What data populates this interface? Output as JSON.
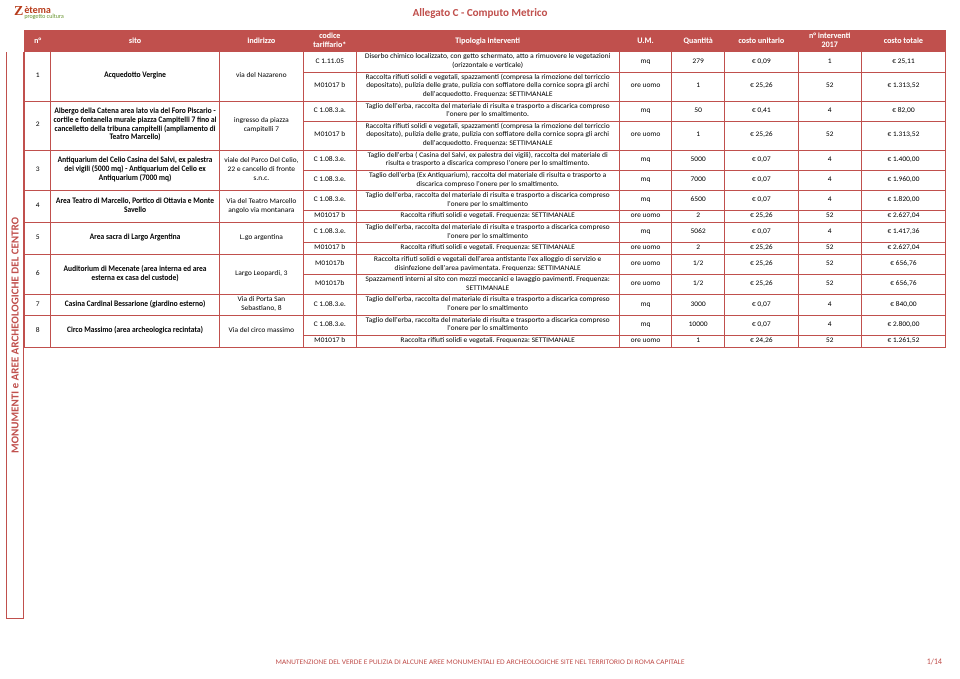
{
  "docTitle": "Allegato C - Computo Metrico",
  "logo": {
    "letter": "Z",
    "name": "ètema",
    "tagline": "progetto cultura"
  },
  "sideLabel": "MONUMENTI e AREE ARCHEOLOGICHE DEL CENTRO",
  "footer": "MANUTENZIONE DEL VERDE E PULIZIA DI ALCUNE AREE MONUMENTALI ED ARCHEOLOGICHE SITE NEL TERRITORIO DI ROMA CAPITALE",
  "pageNo": "1/14",
  "headers": {
    "n": "n°",
    "sito": "sito",
    "indirizzo": "indirizzo",
    "codice": "codice tariffario*",
    "tipologia": "Tipologia interventi",
    "um": "U.M.",
    "quantita": "Quantità",
    "costoUnit": "costo unitario",
    "nInt": "n° interventi 2017",
    "costoTot": "costo totale"
  },
  "groups": [
    {
      "n": "1",
      "sito": "Acquedotto Vergine",
      "indirizzo": "via del Nazareno",
      "rows": [
        {
          "cod": "C 1.11.05",
          "tip": "Diserbo chimico localizzato, con getto schermato, atto a rimuovere le vegetazioni (orizzontale e verticale)",
          "um": "mq",
          "qt": "279",
          "cu": "€         0,09",
          "ni": "1",
          "ct": "€         25,11"
        },
        {
          "cod": "M01017 b",
          "tip": "Raccolta rifiuti solidi e vegetali, spazzamenti (compresa la rimozione del terriccio depositato), pulizia delle grate, pulizia con soffiatore della cornice sopra gli archi dell'acquedotto. Frequenza: SETTIMANALE",
          "um": "ore uomo",
          "qt": "1",
          "cu": "€       25,26",
          "ni": "52",
          "ct": "€   1.313,52"
        }
      ]
    },
    {
      "n": "2",
      "sito": "Albergo della Catena  area  lato via del Foro Piscario - cortile e fontanella murale piazza Campitelli 7 fino al cancelletto della tribuna campitelli (ampliamento di Teatro Marcello)",
      "indirizzo": "ingresso da piazza campitelli 7",
      "rows": [
        {
          "cod": "C 1.08.3.a.",
          "tip": "Taglio dell'erba, raccolta del materiale di risulta e trasporto a discarica compreso l'onere per lo smaltimento.",
          "um": "mq",
          "qt": "50",
          "cu": "€         0,41",
          "ni": "4",
          "ct": "€         82,00"
        },
        {
          "cod": "M01017 b",
          "tip": "Raccolta rifiuti solidi e vegetali, spazzamenti (compresa la rimozione del terriccio depositato), pulizia delle grate, pulizia con soffiatore della cornice sopra gli archi dell'acquedotto. Frequenza: SETTIMANALE",
          "um": "ore uomo",
          "qt": "1",
          "cu": "€       25,26",
          "ni": "52",
          "ct": "€   1.313,52"
        }
      ]
    },
    {
      "n": "3",
      "sito": "Antiquarium del Celio Casina del Salvi, ex palestra dei vigili (5000 mq) - Antiquarium del Celio ex Antiquarium (7000 mq)",
      "indirizzo": "viale del Parco Del Celio, 22 e cancello di fronte s.n.c.",
      "rows": [
        {
          "cod": "C 1.08.3.e.",
          "tip": "Taglio dell'erba ( Casina del Salvi, ex palestra dei vigili), raccolta del materiale di risulta e trasporto a discarica compreso l'onere per lo smaltimento.",
          "um": "mq",
          "qt": "5000",
          "cu": "€         0,07",
          "ni": "4",
          "ct": "€   1.400,00"
        },
        {
          "cod": "C 1.08.3.e.",
          "tip": "Taglio dell'erba (Ex Antiquarium), raccolta del materiale di risulta e trasporto a discarica compreso l'onere per lo smaltimento.",
          "um": "mq",
          "qt": "7000",
          "cu": "€         0,07",
          "ni": "4",
          "ct": "€   1.960,00"
        }
      ]
    },
    {
      "n": "4",
      "sito": "Area Teatro di Marcello, Portico di Ottavia e Monte Savello",
      "indirizzo": "Via del Teatro Marcello angolo via montanara",
      "rows": [
        {
          "cod": "C 1.08.3.e.",
          "tip": "Taglio dell'erba, raccolta del materiale di risulta e trasporto a discarica compreso l'onere per lo smaltimento",
          "um": "mq",
          "qt": "6500",
          "cu": "€         0,07",
          "ni": "4",
          "ct": "€   1.820,00"
        },
        {
          "cod": "M01017 b",
          "tip": "Raccolta rifiuti solidi e vegetali. Frequenza: SETTIMANALE",
          "um": "ore uomo",
          "qt": "2",
          "cu": "€       25,26",
          "ni": "52",
          "ct": "€   2.627,04"
        }
      ]
    },
    {
      "n": "5",
      "sito": "Area sacra di Largo Argentina",
      "indirizzo": "L.go argentina",
      "rows": [
        {
          "cod": "C 1.08.3.e.",
          "tip": "Taglio dell'erba, raccolta del materiale di risulta e trasporto a discarica compreso l'onere per lo smaltimento",
          "um": "mq",
          "qt": "5062",
          "cu": "€         0,07",
          "ni": "4",
          "ct": "€   1.417,36"
        },
        {
          "cod": "M01017 b",
          "tip": "Raccolta rifiuti solidi e vegetali. Frequenza: SETTIMANALE",
          "um": "ore uomo",
          "qt": "2",
          "cu": "€       25,26",
          "ni": "52",
          "ct": "€   2.627,04"
        }
      ]
    },
    {
      "n": "6",
      "sito": "Auditorium di Mecenate (area interna ed area esterna ex casa del custode)",
      "indirizzo": "Largo Leopardi, 3",
      "rows": [
        {
          "cod": "M01017b",
          "tip": "Raccolta rifiuti solidi e vegetali dell'area antistante l'ex alloggio di servizio e disinfezione dell'area pavimentata. Frequenza: SETTIMANALE",
          "um": "ore uomo",
          "qt": "1/2",
          "cu": "€       25,26",
          "ni": "52",
          "ct": "€      656,76"
        },
        {
          "cod": "M01017b",
          "tip": "Spazzamenti interni al sito con mezzi meccanici e lavaggio pavimenti. Frequenza: SETTIMANALE",
          "um": "ore uomo",
          "qt": "1/2",
          "cu": "€       25,26",
          "ni": "52",
          "ct": "€      656,76"
        }
      ]
    },
    {
      "n": "7",
      "sito": "Casina Cardinal Bessarione (giardino esterno)",
      "indirizzo": "Via di Porta San Sebastiano, 8",
      "rows": [
        {
          "cod": "C 1.08.3.e.",
          "tip": "Taglio dell'erba, raccolta del materiale di risulta e trasporto a discarica compreso l'onere per lo smaltimento",
          "um": "mq",
          "qt": "3000",
          "cu": "€         0,07",
          "ni": "4",
          "ct": "€      840,00"
        }
      ]
    },
    {
      "n": "8",
      "sito": "Circo Massimo (area archeologica recintata)",
      "indirizzo": "Via del circo massimo",
      "rows": [
        {
          "cod": "C 1.08.3.e.",
          "tip": "Taglio dell'erba, raccolta del materiale di risulta e trasporto a discarica compreso l'onere per lo smaltimento",
          "um": "mq",
          "qt": "10000",
          "cu": "€         0,07",
          "ni": "4",
          "ct": "€   2.800,00"
        },
        {
          "cod": "M01017 b",
          "tip": "Raccolta rifiuti solidi e vegetali. Frequenza: SETTIMANALE",
          "um": "ore uomo",
          "qt": "1",
          "cu": "€       24,26",
          "ni": "52",
          "ct": "€   1.261,52"
        }
      ]
    }
  ]
}
